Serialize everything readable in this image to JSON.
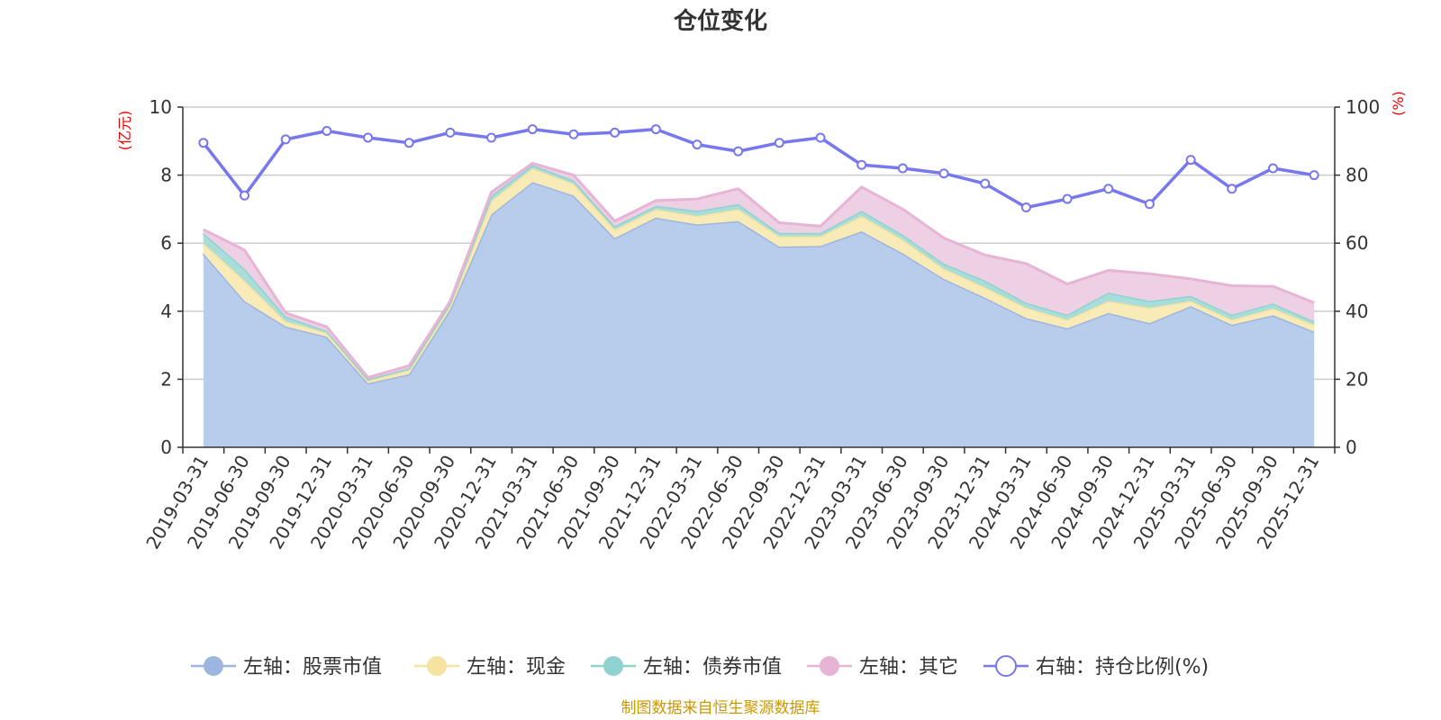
{
  "chart_data": {
    "type": "area",
    "title": "仓位变化",
    "left_unit": "(亿元)",
    "right_unit": "(%)",
    "left_ylim": [
      0,
      10
    ],
    "left_ticks": [
      "0",
      "2",
      "4",
      "6",
      "8",
      "10"
    ],
    "right_ylim": [
      0,
      100
    ],
    "right_ticks": [
      "0",
      "20",
      "40",
      "60",
      "80",
      "100"
    ],
    "categories": [
      "2019-03-31",
      "2019-06-30",
      "2019-09-30",
      "2019-12-31",
      "2020-03-31",
      "2020-06-30",
      "2020-09-30",
      "2020-12-31",
      "2021-03-31",
      "2021-06-30",
      "2021-09-30",
      "2021-12-31",
      "2022-03-31",
      "2022-06-30",
      "2022-09-30",
      "2022-12-31",
      "2023-03-31",
      "2023-06-30",
      "2023-09-30",
      "2023-12-31",
      "2024-03-31",
      "2024-06-30",
      "2024-09-30",
      "2024-12-31",
      "2025-03-31",
      "2025-06-30",
      "2025-09-30",
      "2025-12-31"
    ],
    "series": [
      {
        "name": "左轴：股票市值",
        "axis": "left",
        "color": "#9db6e0",
        "fill": "#b8cceb",
        "values": [
          5.7,
          4.3,
          3.55,
          3.25,
          1.88,
          2.15,
          4.05,
          6.85,
          7.8,
          7.4,
          6.15,
          6.75,
          6.55,
          6.65,
          5.9,
          5.92,
          6.35,
          5.7,
          4.95,
          4.4,
          3.8,
          3.5,
          3.95,
          3.65,
          4.15,
          3.6,
          3.88,
          3.4
        ]
      },
      {
        "name": "左轴：现金",
        "axis": "left",
        "color": "#f6e3a0",
        "fill": "#f9ebb7",
        "values": [
          0.3,
          0.6,
          0.15,
          0.12,
          0.08,
          0.12,
          0.1,
          0.4,
          0.4,
          0.35,
          0.25,
          0.25,
          0.25,
          0.35,
          0.3,
          0.28,
          0.45,
          0.4,
          0.3,
          0.3,
          0.3,
          0.25,
          0.35,
          0.45,
          0.15,
          0.15,
          0.2,
          0.2
        ]
      },
      {
        "name": "左轴：债券市值",
        "axis": "left",
        "color": "#8fd2cf",
        "fill": "#a9ddd9",
        "values": [
          0.3,
          0.35,
          0.15,
          0.05,
          0.04,
          0.05,
          0.1,
          0.15,
          0.1,
          0.1,
          0.1,
          0.1,
          0.15,
          0.15,
          0.1,
          0.1,
          0.15,
          0.15,
          0.15,
          0.2,
          0.15,
          0.15,
          0.25,
          0.2,
          0.15,
          0.15,
          0.15,
          0.1
        ]
      },
      {
        "name": "左轴：其它",
        "axis": "left",
        "color": "#e8b4d6",
        "fill": "#edd0e4",
        "values": [
          0.1,
          0.55,
          0.1,
          0.12,
          0.05,
          0.08,
          0.05,
          0.1,
          0.05,
          0.15,
          0.15,
          0.15,
          0.35,
          0.45,
          0.3,
          0.2,
          0.7,
          0.75,
          0.75,
          0.75,
          1.15,
          0.9,
          0.65,
          0.8,
          0.5,
          0.85,
          0.5,
          0.55
        ]
      },
      {
        "name": "右轴：持仓比例(%)",
        "axis": "right",
        "color": "#7777ee",
        "values": [
          89.5,
          74,
          90.5,
          93,
          91,
          89.5,
          92.5,
          91,
          93.5,
          92,
          92.5,
          93.5,
          89,
          87,
          89.5,
          91,
          83,
          82,
          80.5,
          77.5,
          70.5,
          73,
          76,
          71.5,
          84.5,
          76,
          82,
          80
        ]
      }
    ]
  },
  "footer": {
    "source": "制图数据来自恒生聚源数据库",
    "source_color": "#cc9900"
  },
  "colors": {
    "axis": "#333333",
    "grid": "#cccccc",
    "unit": "#ee0000"
  }
}
